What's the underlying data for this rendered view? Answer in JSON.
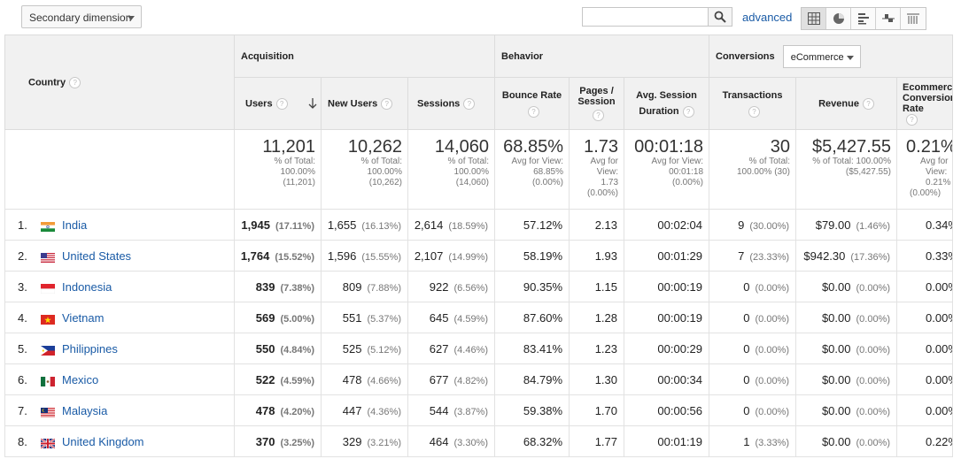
{
  "toolbar": {
    "secondary_dimension": "Secondary dimension",
    "search_value": "",
    "advanced": "advanced"
  },
  "headers": {
    "country": "Country",
    "acquisition": "Acquisition",
    "behavior": "Behavior",
    "conversions": "Conversions",
    "conversions_select": "eCommerce",
    "users": "Users",
    "new_users": "New Users",
    "sessions": "Sessions",
    "bounce_rate": "Bounce Rate",
    "pages_session": "Pages / Session",
    "avg_session_duration": "Avg. Session Duration",
    "transactions": "Transactions",
    "revenue": "Revenue",
    "ecommerce_conversion_rate": "Ecommerce Conversion Rate"
  },
  "totals": {
    "users": {
      "value": "11,201",
      "l1": "% of Total:",
      "l2": "100.00%",
      "l3": "(11,201)"
    },
    "new_users": {
      "value": "10,262",
      "l1": "% of Total:",
      "l2": "100.00%",
      "l3": "(10,262)"
    },
    "sessions": {
      "value": "14,060",
      "l1": "% of Total:",
      "l2": "100.00%",
      "l3": "(14,060)"
    },
    "bounce_rate": {
      "value": "68.85%",
      "l1": "Avg for View:",
      "l2": "68.85%",
      "l3": "(0.00%)"
    },
    "pages_session": {
      "value": "1.73",
      "l1": "Avg for",
      "l2": "View:",
      "l3": "1.73",
      "l4": "(0.00%)"
    },
    "avg_session_duration": {
      "value": "00:01:18",
      "l1": "Avg for View:",
      "l2": "00:01:18",
      "l3": "(0.00%)"
    },
    "transactions": {
      "value": "30",
      "l1": "% of Total:",
      "l2": "100.00% (30)"
    },
    "revenue": {
      "value": "$5,427.55",
      "l1": "% of Total: 100.00%",
      "l2": "($5,427.55)"
    },
    "ecommerce_conversion_rate": {
      "value": "0.21%",
      "l1": "Avg for",
      "l2": "View:",
      "l3": "0.21%",
      "l4": "(0.00%)"
    }
  },
  "rows": [
    {
      "idx": "1.",
      "country": "India",
      "flag": "india-flag-icon",
      "users": "1,945",
      "users_pct": "(17.11%)",
      "new_users": "1,655",
      "new_users_pct": "(16.13%)",
      "sessions": "2,614",
      "sessions_pct": "(18.59%)",
      "bounce": "57.12%",
      "pages": "2.13",
      "duration": "00:02:04",
      "transactions": "9",
      "transactions_pct": "(30.00%)",
      "revenue": "$79.00",
      "revenue_pct": "(1.46%)",
      "conv": "0.34%"
    },
    {
      "idx": "2.",
      "country": "United States",
      "flag": "usa-flag-icon",
      "users": "1,764",
      "users_pct": "(15.52%)",
      "new_users": "1,596",
      "new_users_pct": "(15.55%)",
      "sessions": "2,107",
      "sessions_pct": "(14.99%)",
      "bounce": "58.19%",
      "pages": "1.93",
      "duration": "00:01:29",
      "transactions": "7",
      "transactions_pct": "(23.33%)",
      "revenue": "$942.30",
      "revenue_pct": "(17.36%)",
      "conv": "0.33%"
    },
    {
      "idx": "3.",
      "country": "Indonesia",
      "flag": "indonesia-flag-icon",
      "users": "839",
      "users_pct": "(7.38%)",
      "new_users": "809",
      "new_users_pct": "(7.88%)",
      "sessions": "922",
      "sessions_pct": "(6.56%)",
      "bounce": "90.35%",
      "pages": "1.15",
      "duration": "00:00:19",
      "transactions": "0",
      "transactions_pct": "(0.00%)",
      "revenue": "$0.00",
      "revenue_pct": "(0.00%)",
      "conv": "0.00%"
    },
    {
      "idx": "4.",
      "country": "Vietnam",
      "flag": "vietnam-flag-icon",
      "users": "569",
      "users_pct": "(5.00%)",
      "new_users": "551",
      "new_users_pct": "(5.37%)",
      "sessions": "645",
      "sessions_pct": "(4.59%)",
      "bounce": "87.60%",
      "pages": "1.28",
      "duration": "00:00:19",
      "transactions": "0",
      "transactions_pct": "(0.00%)",
      "revenue": "$0.00",
      "revenue_pct": "(0.00%)",
      "conv": "0.00%"
    },
    {
      "idx": "5.",
      "country": "Philippines",
      "flag": "philippines-flag-icon",
      "users": "550",
      "users_pct": "(4.84%)",
      "new_users": "525",
      "new_users_pct": "(5.12%)",
      "sessions": "627",
      "sessions_pct": "(4.46%)",
      "bounce": "83.41%",
      "pages": "1.23",
      "duration": "00:00:29",
      "transactions": "0",
      "transactions_pct": "(0.00%)",
      "revenue": "$0.00",
      "revenue_pct": "(0.00%)",
      "conv": "0.00%"
    },
    {
      "idx": "6.",
      "country": "Mexico",
      "flag": "mexico-flag-icon",
      "users": "522",
      "users_pct": "(4.59%)",
      "new_users": "478",
      "new_users_pct": "(4.66%)",
      "sessions": "677",
      "sessions_pct": "(4.82%)",
      "bounce": "84.79%",
      "pages": "1.30",
      "duration": "00:00:34",
      "transactions": "0",
      "transactions_pct": "(0.00%)",
      "revenue": "$0.00",
      "revenue_pct": "(0.00%)",
      "conv": "0.00%"
    },
    {
      "idx": "7.",
      "country": "Malaysia",
      "flag": "malaysia-flag-icon",
      "users": "478",
      "users_pct": "(4.20%)",
      "new_users": "447",
      "new_users_pct": "(4.36%)",
      "sessions": "544",
      "sessions_pct": "(3.87%)",
      "bounce": "59.38%",
      "pages": "1.70",
      "duration": "00:00:56",
      "transactions": "0",
      "transactions_pct": "(0.00%)",
      "revenue": "$0.00",
      "revenue_pct": "(0.00%)",
      "conv": "0.00%"
    },
    {
      "idx": "8.",
      "country": "United Kingdom",
      "flag": "uk-flag-icon",
      "users": "370",
      "users_pct": "(3.25%)",
      "new_users": "329",
      "new_users_pct": "(3.21%)",
      "sessions": "464",
      "sessions_pct": "(3.30%)",
      "bounce": "68.32%",
      "pages": "1.77",
      "duration": "00:01:19",
      "transactions": "1",
      "transactions_pct": "(3.33%)",
      "revenue": "$0.00",
      "revenue_pct": "(0.00%)",
      "conv": "0.22%"
    }
  ]
}
